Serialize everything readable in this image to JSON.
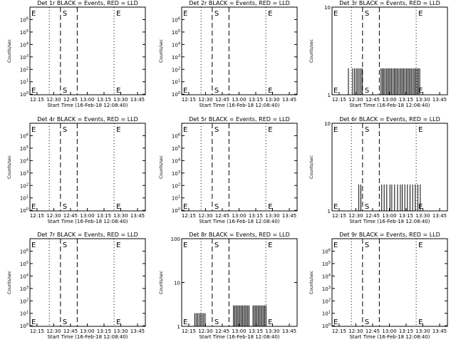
{
  "chart_data": [
    {
      "type": "line",
      "title": "Det 1r BLACK = Events, RED = LLD",
      "ylabel": "Counts/sec",
      "xlabel": "Start Time (16-Feb-18 12:08:40)",
      "xlim": [
        "12:08:40",
        "13:52:00"
      ],
      "xticks": [
        "12:15",
        "12:30",
        "12:45",
        "13:00",
        "13:15",
        "13:30",
        "13:45"
      ],
      "yscale": "log",
      "ylim": [
        0.9,
        10000000
      ],
      "yticks": [
        "10^0",
        "10^1",
        "10^2",
        "10^3",
        "10^4",
        "10^5",
        "10^6"
      ],
      "markers": [
        {
          "label": "E",
          "x": "12:09:00",
          "line": "none"
        },
        {
          "label": "S",
          "x": "12:36:00",
          "line": "dashed"
        },
        {
          "label": "",
          "x": "12:51:00",
          "line": "dashed"
        },
        {
          "label": "E",
          "x": "13:24:00",
          "line": "dotted"
        },
        {
          "label": "",
          "x": "12:26:00",
          "line": "dotted"
        }
      ],
      "events": []
    },
    {
      "type": "line",
      "title": "Det 2r BLACK = Events, RED = LLD",
      "ylabel": "Counts/sec",
      "xlabel": "Start Time (16-Feb-18 12:08:40)",
      "xlim": [
        "12:08:40",
        "13:52:00"
      ],
      "xticks": [
        "12:15",
        "12:30",
        "12:45",
        "13:00",
        "13:15",
        "13:30",
        "13:45"
      ],
      "yscale": "log",
      "ylim": [
        0.9,
        10000000
      ],
      "yticks": [
        "10^0",
        "10^1",
        "10^2",
        "10^3",
        "10^4",
        "10^5",
        "10^6"
      ],
      "markers": [
        {
          "label": "E",
          "x": "12:09:00",
          "line": "none"
        },
        {
          "label": "S",
          "x": "12:36:00",
          "line": "dashed"
        },
        {
          "label": "",
          "x": "12:51:00",
          "line": "dashed"
        },
        {
          "label": "E",
          "x": "13:24:00",
          "line": "dotted"
        },
        {
          "label": "",
          "x": "12:26:00",
          "line": "dotted"
        }
      ],
      "events": []
    },
    {
      "type": "line",
      "title": "Det 3r BLACK = Events, RED = LLD",
      "ylabel": "Counts/sec",
      "xlabel": "Start Time (16-Feb-18 12:08:40)",
      "xlim": [
        "12:08:40",
        "13:52:00"
      ],
      "xticks": [
        "12:15",
        "12:30",
        "12:45",
        "13:00",
        "13:15",
        "13:30",
        "13:45"
      ],
      "yscale": "log",
      "ylim": [
        1,
        10
      ],
      "yticks": [
        "1",
        "10"
      ],
      "markers": [
        {
          "label": "E",
          "x": "12:09:00",
          "line": "none"
        },
        {
          "label": "S",
          "x": "12:36:00",
          "line": "dashed"
        },
        {
          "label": "",
          "x": "12:51:00",
          "line": "dashed"
        },
        {
          "label": "E",
          "x": "13:24:00",
          "line": "dotted"
        },
        {
          "label": "",
          "x": "12:26:00",
          "line": "dotted"
        }
      ],
      "events": [
        [
          "12:23:20",
          2
        ],
        [
          "12:27:10",
          2
        ],
        [
          "12:28:50",
          2
        ],
        [
          "12:30:20",
          2
        ],
        [
          "12:31:40",
          2
        ],
        [
          "12:33:00",
          2
        ],
        [
          "12:34:30",
          2
        ],
        [
          "12:35:40",
          2
        ],
        [
          "12:52:30",
          2
        ],
        [
          "12:53:40",
          2
        ],
        [
          "12:54:50",
          2
        ],
        [
          "12:56:00",
          2
        ],
        [
          "12:57:20",
          2
        ],
        [
          "12:58:30",
          2
        ],
        [
          "12:59:40",
          2
        ],
        [
          "13:00:50",
          2
        ],
        [
          "13:02:00",
          2
        ],
        [
          "13:03:20",
          2
        ],
        [
          "13:04:30",
          2
        ],
        [
          "13:05:40",
          2
        ],
        [
          "13:06:50",
          2
        ],
        [
          "13:08:00",
          2
        ],
        [
          "13:09:20",
          2
        ],
        [
          "13:10:30",
          2
        ],
        [
          "13:11:40",
          2
        ],
        [
          "13:12:50",
          2
        ],
        [
          "13:14:00",
          2
        ],
        [
          "13:15:20",
          2
        ],
        [
          "13:16:30",
          2
        ],
        [
          "13:17:40",
          2
        ],
        [
          "13:18:50",
          2
        ],
        [
          "13:20:00",
          2
        ],
        [
          "13:21:20",
          2
        ],
        [
          "13:22:30",
          2
        ],
        [
          "13:23:40",
          2
        ],
        [
          "13:24:50",
          2
        ],
        [
          "13:26:00",
          2
        ],
        [
          "13:27:10",
          2
        ]
      ]
    },
    {
      "type": "line",
      "title": "Det 4r BLACK = Events, RED = LLD",
      "ylabel": "Counts/sec",
      "xlabel": "Start Time (16-Feb-18 12:08:40)",
      "xlim": [
        "12:08:40",
        "13:52:00"
      ],
      "xticks": [
        "12:15",
        "12:30",
        "12:45",
        "13:00",
        "13:15",
        "13:30",
        "13:45"
      ],
      "yscale": "log",
      "ylim": [
        0.9,
        10000000
      ],
      "yticks": [
        "10^0",
        "10^1",
        "10^2",
        "10^3",
        "10^4",
        "10^5",
        "10^6"
      ],
      "markers": [
        {
          "label": "E",
          "x": "12:09:00",
          "line": "none"
        },
        {
          "label": "S",
          "x": "12:36:00",
          "line": "dashed"
        },
        {
          "label": "",
          "x": "12:51:00",
          "line": "dashed"
        },
        {
          "label": "E",
          "x": "13:24:00",
          "line": "dotted"
        },
        {
          "label": "",
          "x": "12:26:00",
          "line": "dotted"
        }
      ],
      "events": []
    },
    {
      "type": "line",
      "title": "Det 5r BLACK = Events, RED = LLD",
      "ylabel": "Counts/sec",
      "xlabel": "Start Time (16-Feb-18 12:08:40)",
      "xlim": [
        "12:08:40",
        "13:52:00"
      ],
      "xticks": [
        "12:15",
        "12:30",
        "12:45",
        "13:00",
        "13:15",
        "13:30",
        "13:45"
      ],
      "yscale": "log",
      "ylim": [
        0.9,
        10000000
      ],
      "yticks": [
        "10^0",
        "10^1",
        "10^2",
        "10^3",
        "10^4",
        "10^5",
        "10^6"
      ],
      "markers": [
        {
          "label": "E",
          "x": "12:09:00",
          "line": "none"
        },
        {
          "label": "S",
          "x": "12:36:00",
          "line": "dashed"
        },
        {
          "label": "",
          "x": "12:51:00",
          "line": "dashed"
        },
        {
          "label": "E",
          "x": "13:24:00",
          "line": "dotted"
        },
        {
          "label": "",
          "x": "12:26:00",
          "line": "dotted"
        }
      ],
      "events": []
    },
    {
      "type": "line",
      "title": "Det 6r BLACK = Events, RED = LLD",
      "ylabel": "Counts/sec",
      "xlabel": "Start Time (16-Feb-18 12:08:40)",
      "xlim": [
        "12:08:40",
        "13:52:00"
      ],
      "xticks": [
        "12:15",
        "12:30",
        "12:45",
        "13:00",
        "13:15",
        "13:30",
        "13:45"
      ],
      "yscale": "log",
      "ylim": [
        1,
        10
      ],
      "yticks": [
        "1",
        "10"
      ],
      "markers": [
        {
          "label": "E",
          "x": "12:09:00",
          "line": "none"
        },
        {
          "label": "S",
          "x": "12:36:00",
          "line": "dashed"
        },
        {
          "label": "",
          "x": "12:51:00",
          "line": "dashed"
        },
        {
          "label": "E",
          "x": "13:24:00",
          "line": "dotted"
        },
        {
          "label": "",
          "x": "12:26:00",
          "line": "dotted"
        }
      ],
      "events": [
        [
          "12:32:40",
          2
        ],
        [
          "12:34:30",
          2
        ],
        [
          "12:53:10",
          2
        ],
        [
          "12:55:20",
          2
        ],
        [
          "12:57:40",
          2
        ],
        [
          "13:00:30",
          2
        ],
        [
          "13:02:10",
          2
        ],
        [
          "13:04:40",
          2
        ],
        [
          "13:07:20",
          2
        ],
        [
          "13:09:50",
          2
        ],
        [
          "13:11:30",
          2
        ],
        [
          "13:13:50",
          2
        ],
        [
          "13:16:10",
          2
        ],
        [
          "13:18:30",
          2
        ],
        [
          "13:20:50",
          2
        ],
        [
          "13:23:10",
          2
        ],
        [
          "13:25:30",
          2
        ],
        [
          "13:27:40",
          2
        ]
      ]
    },
    {
      "type": "line",
      "title": "Det 7r BLACK = Events, RED = LLD",
      "ylabel": "Counts/sec",
      "xlabel": "Start Time (16-Feb-18 12:08:40)",
      "xlim": [
        "12:08:40",
        "13:52:00"
      ],
      "xticks": [
        "12:15",
        "12:30",
        "12:45",
        "13:00",
        "13:15",
        "13:30",
        "13:45"
      ],
      "yscale": "log",
      "ylim": [
        0.9,
        10000000
      ],
      "yticks": [
        "10^0",
        "10^1",
        "10^2",
        "10^3",
        "10^4",
        "10^5",
        "10^6"
      ],
      "markers": [
        {
          "label": "E",
          "x": "12:09:00",
          "line": "none"
        },
        {
          "label": "S",
          "x": "12:36:00",
          "line": "dashed"
        },
        {
          "label": "",
          "x": "12:51:00",
          "line": "dashed"
        },
        {
          "label": "E",
          "x": "13:24:00",
          "line": "dotted"
        },
        {
          "label": "",
          "x": "12:26:00",
          "line": "dotted"
        }
      ],
      "events": []
    },
    {
      "type": "line",
      "title": "Det 8r BLACK = Events, RED = LLD",
      "ylabel": "Counts/sec",
      "xlabel": "Start Time (16-Feb-18 12:08:40)",
      "xlim": [
        "12:08:40",
        "13:52:00"
      ],
      "xticks": [
        "12:15",
        "12:30",
        "12:45",
        "13:00",
        "13:15",
        "13:30",
        "13:45"
      ],
      "yscale": "log",
      "ylim": [
        1,
        100
      ],
      "yticks": [
        "1",
        "10",
        "100"
      ],
      "markers": [
        {
          "label": "E",
          "x": "12:09:00",
          "line": "none"
        },
        {
          "label": "S",
          "x": "12:36:00",
          "line": "dashed"
        },
        {
          "label": "",
          "x": "12:51:00",
          "line": "dashed"
        },
        {
          "label": "E",
          "x": "13:24:00",
          "line": "dotted"
        },
        {
          "label": "",
          "x": "12:26:00",
          "line": "dotted"
        }
      ],
      "events": [
        [
          "12:20:20",
          2
        ],
        [
          "12:21:40",
          2
        ],
        [
          "12:23:00",
          2
        ],
        [
          "12:24:20",
          2
        ],
        [
          "12:25:40",
          2
        ],
        [
          "12:27:00",
          2
        ],
        [
          "12:28:20",
          2
        ],
        [
          "12:29:40",
          2
        ],
        [
          "12:55:00",
          3
        ],
        [
          "12:56:10",
          3
        ],
        [
          "12:57:20",
          3
        ],
        [
          "12:58:30",
          3
        ],
        [
          "12:59:40",
          3
        ],
        [
          "13:00:50",
          3
        ],
        [
          "13:02:00",
          3
        ],
        [
          "13:03:10",
          3
        ],
        [
          "13:04:20",
          3
        ],
        [
          "13:05:30",
          3
        ],
        [
          "13:06:40",
          3
        ],
        [
          "13:07:50",
          3
        ],
        [
          "13:09:00",
          3
        ],
        [
          "13:12:30",
          3
        ],
        [
          "13:13:40",
          3
        ],
        [
          "13:14:50",
          3
        ],
        [
          "13:16:00",
          3
        ],
        [
          "13:17:10",
          3
        ],
        [
          "13:18:20",
          3
        ],
        [
          "13:19:30",
          3
        ],
        [
          "13:20:40",
          3
        ],
        [
          "13:21:50",
          3
        ],
        [
          "13:23:00",
          3
        ],
        [
          "13:24:10",
          3
        ]
      ]
    },
    {
      "type": "line",
      "title": "Det 9r BLACK = Events, RED = LLD",
      "ylabel": "Counts/sec",
      "xlabel": "Start Time (16-Feb-18 12:08:40)",
      "xlim": [
        "12:08:40",
        "13:52:00"
      ],
      "xticks": [
        "12:15",
        "12:30",
        "12:45",
        "13:00",
        "13:15",
        "13:30",
        "13:45"
      ],
      "yscale": "log",
      "ylim": [
        0.9,
        10000000
      ],
      "yticks": [
        "10^0",
        "10^1",
        "10^2",
        "10^3",
        "10^4",
        "10^5",
        "10^6"
      ],
      "markers": [
        {
          "label": "E",
          "x": "12:09:00",
          "line": "none"
        },
        {
          "label": "S",
          "x": "12:36:00",
          "line": "dashed"
        },
        {
          "label": "",
          "x": "12:51:00",
          "line": "dashed"
        },
        {
          "label": "E",
          "x": "13:24:00",
          "line": "dotted"
        },
        {
          "label": "",
          "x": "12:26:00",
          "line": "dotted"
        }
      ],
      "events": []
    }
  ]
}
